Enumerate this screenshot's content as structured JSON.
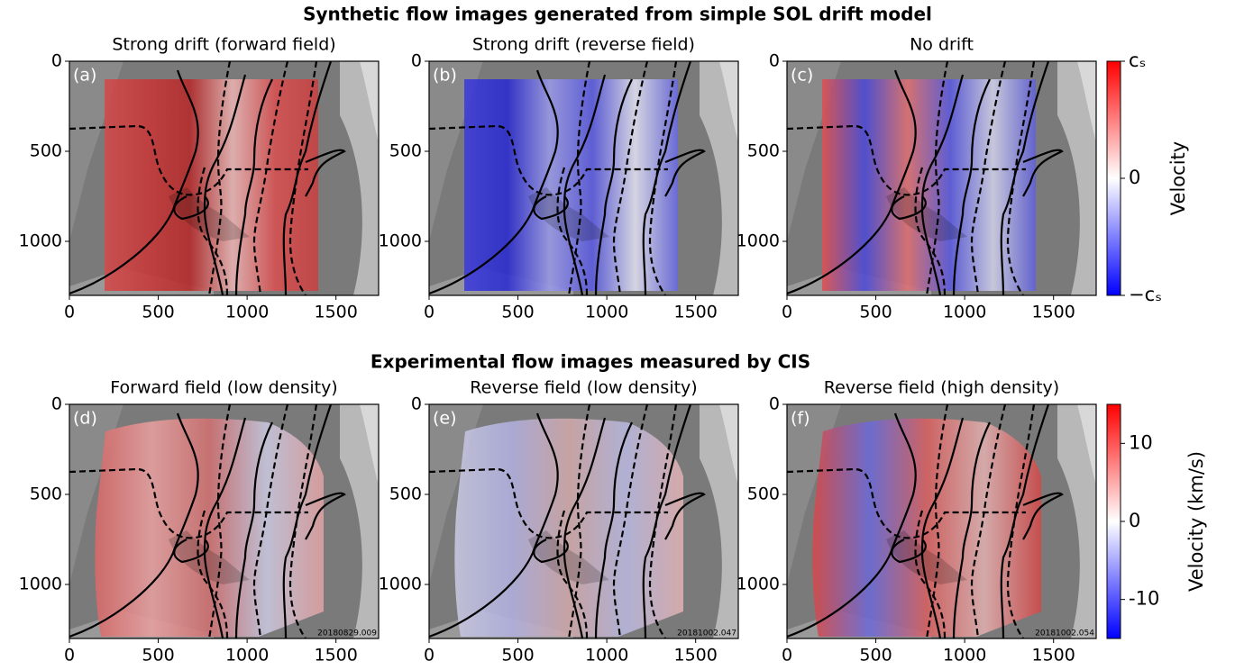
{
  "suptitles": [
    "Synthetic flow images generated from simple SOL drift model",
    "Experimental flow images measured by CIS"
  ],
  "chart_data": [
    {
      "type": "image",
      "title": "Strong drift (forward field)",
      "panel_label": "(a)",
      "xlim": [
        0,
        1740
      ],
      "ylim": [
        0,
        1300
      ],
      "y_inverted": true,
      "xticks": [
        0,
        500,
        1000,
        1500
      ],
      "yticks": [
        0,
        500,
        1000
      ],
      "overlay_colors": [
        "#d24a4a",
        "#c83838",
        "#b52a2a",
        "#eab4b4",
        "#d85050",
        "#c84040"
      ]
    },
    {
      "type": "image",
      "title": "Strong drift (reverse field)",
      "panel_label": "(b)",
      "xlim": [
        0,
        1740
      ],
      "ylim": [
        0,
        1300
      ],
      "y_inverted": true,
      "xticks": [
        0,
        500,
        1000,
        1500
      ],
      "yticks": [
        0,
        500,
        1000
      ],
      "overlay_colors": [
        "#3c3cdc",
        "#2a2ad0",
        "#9a9ae8",
        "#5a5ae0",
        "#e0e0f0",
        "#6868e0"
      ]
    },
    {
      "type": "image",
      "title": "No drift",
      "panel_label": "(c)",
      "xlim": [
        0,
        1740
      ],
      "ylim": [
        0,
        1300
      ],
      "y_inverted": true,
      "xticks": [
        0,
        500,
        1000,
        1500
      ],
      "yticks": [
        0,
        500,
        1000
      ],
      "overlay_colors": [
        "#e05050",
        "#4a4ad8",
        "#e07070",
        "#5a5ae0",
        "#d0d0e8",
        "#6060d8"
      ]
    },
    {
      "type": "image",
      "title": "Forward field (low density)",
      "panel_label": "(d)",
      "shot": "20180829.009",
      "xlim": [
        0,
        1740
      ],
      "ylim": [
        0,
        1300
      ],
      "y_inverted": true,
      "xticks": [
        0,
        500,
        1000,
        1500
      ],
      "yticks": [
        0,
        500,
        1000
      ],
      "overlay_colors": [
        "#d86868",
        "#e8a0a0",
        "#d07070",
        "#c8c8e0",
        "#e0a0a0"
      ]
    },
    {
      "type": "image",
      "title": "Reverse field (low density)",
      "panel_label": "(e)",
      "shot": "20181002.047",
      "xlim": [
        0,
        1740
      ],
      "ylim": [
        0,
        1300
      ],
      "y_inverted": true,
      "xticks": [
        0,
        500,
        1000,
        1500
      ],
      "yticks": [
        0,
        500,
        1000
      ],
      "overlay_colors": [
        "#c8c8e0",
        "#b0b0e0",
        "#d0a8a8",
        "#b8b8e0",
        "#e0b0b0"
      ]
    },
    {
      "type": "image",
      "title": "Reverse field (high density)",
      "panel_label": "(f)",
      "shot": "20181002.054",
      "xlim": [
        0,
        1740
      ],
      "ylim": [
        0,
        1300
      ],
      "y_inverted": true,
      "xticks": [
        0,
        500,
        1000,
        1500
      ],
      "yticks": [
        0,
        500,
        1000
      ],
      "overlay_colors": [
        "#d84848",
        "#6a6ad8",
        "#d86060",
        "#e0b0b0",
        "#d04848"
      ]
    },
    {
      "type": "colorbar",
      "label": "Velocity",
      "ylim": [
        -1,
        1
      ],
      "yticks": [
        {
          "value": -1,
          "label": "−cₛ"
        },
        0,
        {
          "value": 1,
          "label": "cₛ"
        }
      ],
      "colors": [
        "#0000ff",
        "#ffffff",
        "#ff0000"
      ]
    },
    {
      "type": "colorbar",
      "label": "Velocity (km/s)",
      "ylim": [
        -15,
        15
      ],
      "yticks": [
        -10,
        0,
        10
      ],
      "colors": [
        "#0000ff",
        "#ffffff",
        "#ff0000"
      ]
    }
  ]
}
